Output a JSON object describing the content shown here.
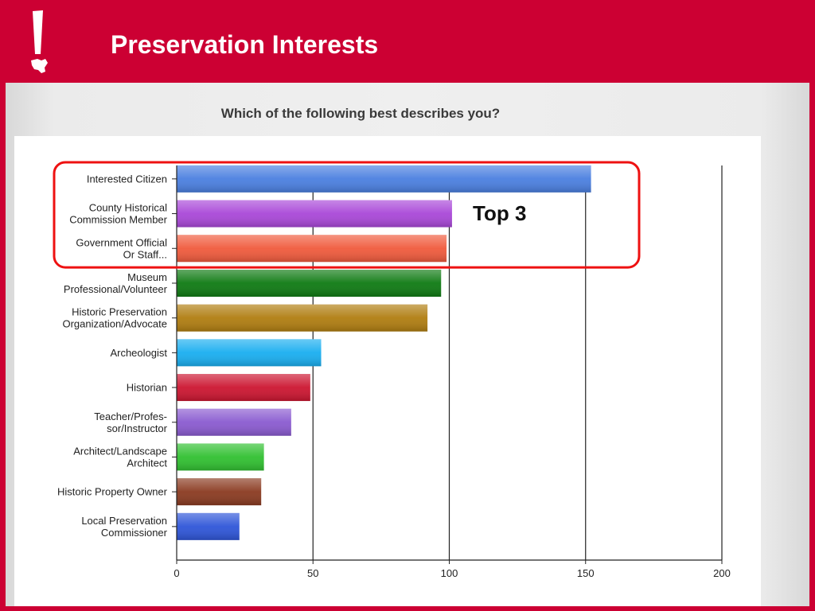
{
  "slide": {
    "title": "Preservation Interests",
    "logo_icon": "exclamation-texas-icon",
    "accent_color": "#cc0033"
  },
  "chart_data": {
    "type": "bar",
    "orientation": "horizontal",
    "title": "Which of the following best describes you?",
    "categories": [
      [
        "Interested Citizen"
      ],
      [
        "County Historical",
        "Commission Member"
      ],
      [
        "Government Official",
        "Or Staff..."
      ],
      [
        "Museum",
        "Professional/Volunteer"
      ],
      [
        "Historic Preservation",
        "Organization/Advocate"
      ],
      [
        "Archeologist"
      ],
      [
        "Historian"
      ],
      [
        "Teacher/Profes-",
        "sor/Instructor"
      ],
      [
        "Architect/Landscape",
        "Architect"
      ],
      [
        "Historic Property Owner"
      ],
      [
        "Local Preservation",
        "Commissioner"
      ]
    ],
    "values": [
      152,
      101,
      99,
      97,
      92,
      53,
      49,
      42,
      32,
      31,
      23
    ],
    "colors": [
      "#4a7fe0",
      "#a947d8",
      "#f05a3c",
      "#0e7a12",
      "#b07d10",
      "#18aef0",
      "#cc1530",
      "#8a5ad0",
      "#30c030",
      "#8a3a20",
      "#2e55d8"
    ],
    "xlim": [
      0,
      200
    ],
    "xticks": [
      0,
      50,
      100,
      150,
      200
    ],
    "gridlines": [
      50,
      100,
      150,
      200
    ],
    "annotation": {
      "text": "Top 3",
      "highlight_categories": 3,
      "color": "#ee1111"
    }
  }
}
